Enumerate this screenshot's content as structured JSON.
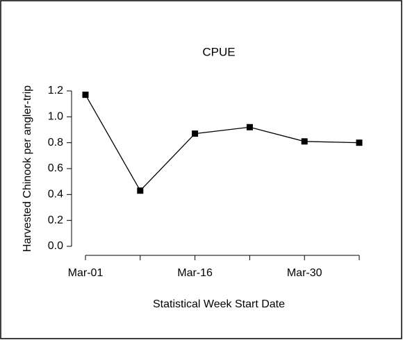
{
  "chart_data": {
    "type": "line",
    "title": "CPUE",
    "x_label": "Statistical Week Start Date",
    "y_label": "Harvested Chinook per angler-trip",
    "categories": [
      "Mar-01",
      null,
      "Mar-16",
      null,
      "Mar-30",
      null
    ],
    "values": [
      1.17,
      0.43,
      0.87,
      0.92,
      0.81,
      0.8
    ],
    "color": "#000000",
    "ylim": [
      0,
      1.2
    ],
    "yticks": [
      {
        "value": 0,
        "label": "0.0"
      },
      0.2,
      0.4,
      0.6,
      0.8,
      {
        "value": 1,
        "label": "1.0"
      },
      1.2
    ]
  }
}
